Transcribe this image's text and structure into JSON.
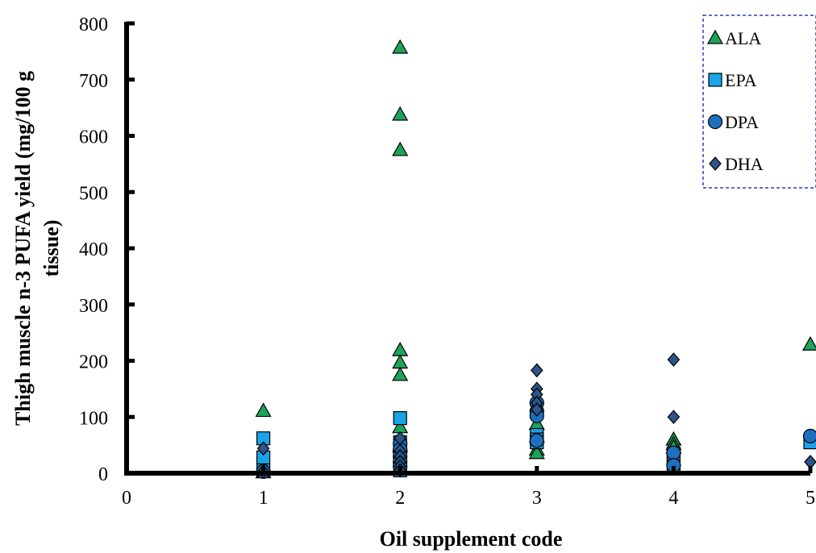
{
  "chart_data": {
    "type": "scatter",
    "title": "",
    "xlabel": "Oil supplement code",
    "ylabel_line1": "Thigh muscle n-3 PUFA yield (mg/100 g",
    "ylabel_line2": "tissue)",
    "xlim": [
      0,
      5
    ],
    "ylim": [
      0,
      800
    ],
    "x_ticks": [
      0,
      1,
      2,
      3,
      4,
      5
    ],
    "y_ticks": [
      0,
      100,
      200,
      300,
      400,
      500,
      600,
      700,
      800
    ],
    "grid": false,
    "legend_position": "top-right",
    "series": [
      {
        "name": "ALA",
        "marker": "triangle",
        "color": "#1fa35a",
        "points": [
          [
            1,
            111
          ],
          [
            1,
            2
          ],
          [
            2,
            757
          ],
          [
            2,
            638
          ],
          [
            2,
            575
          ],
          [
            2,
            219
          ],
          [
            2,
            197
          ],
          [
            2,
            175
          ],
          [
            2,
            82
          ],
          [
            2,
            48
          ],
          [
            3,
            88
          ],
          [
            3,
            65
          ],
          [
            3,
            42
          ],
          [
            3,
            36
          ],
          [
            4,
            60
          ],
          [
            4,
            52
          ],
          [
            4,
            46
          ],
          [
            5,
            229
          ]
        ]
      },
      {
        "name": "EPA",
        "marker": "square",
        "color": "#1aa3e8",
        "points": [
          [
            1,
            62
          ],
          [
            1,
            28
          ],
          [
            1,
            5
          ],
          [
            2,
            98
          ],
          [
            2,
            55
          ],
          [
            2,
            45
          ],
          [
            2,
            35
          ],
          [
            2,
            25
          ],
          [
            2,
            5
          ],
          [
            3,
            68
          ],
          [
            3,
            60
          ],
          [
            3,
            55
          ],
          [
            4,
            35
          ],
          [
            4,
            20
          ],
          [
            4,
            12
          ],
          [
            5,
            55
          ]
        ]
      },
      {
        "name": "DPA",
        "marker": "circle",
        "color": "#1f6fc0",
        "points": [
          [
            1,
            3
          ],
          [
            2,
            52
          ],
          [
            2,
            42
          ],
          [
            2,
            30
          ],
          [
            2,
            20
          ],
          [
            2,
            12
          ],
          [
            3,
            125
          ],
          [
            3,
            110
          ],
          [
            3,
            102
          ],
          [
            3,
            58
          ],
          [
            4,
            36
          ],
          [
            4,
            14
          ],
          [
            5,
            66
          ]
        ]
      },
      {
        "name": "DHA",
        "marker": "diamond",
        "color": "#2d5487",
        "points": [
          [
            1,
            44
          ],
          [
            1,
            3
          ],
          [
            2,
            62
          ],
          [
            2,
            40
          ],
          [
            2,
            30
          ],
          [
            2,
            20
          ],
          [
            2,
            12
          ],
          [
            2,
            5
          ],
          [
            3,
            183
          ],
          [
            3,
            150
          ],
          [
            3,
            140
          ],
          [
            3,
            125
          ],
          [
            3,
            113
          ],
          [
            4,
            202
          ],
          [
            4,
            100
          ],
          [
            5,
            20
          ]
        ]
      }
    ]
  }
}
